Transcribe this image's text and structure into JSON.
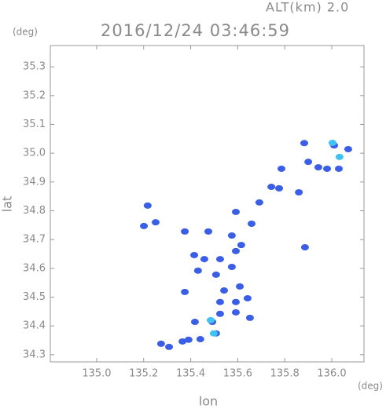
{
  "chart_data": {
    "type": "scatter",
    "title": "2016/12/24 03:46:59",
    "header": "ALT(km) 2.0",
    "y_unit": "(deg)",
    "x_unit": "(deg)",
    "xlabel": "lon",
    "ylabel": "lat",
    "xlim": [
      134.803,
      136.137
    ],
    "ylim": [
      34.275,
      35.374
    ],
    "xticks": [
      {
        "value": 135,
        "label": "135.0"
      },
      135.2,
      135.4,
      135.6,
      135.8,
      {
        "value": 136,
        "label": "136.0"
      }
    ],
    "yticks": [
      34.3,
      34.4,
      34.5,
      34.6,
      34.7,
      34.8,
      34.9,
      {
        "value": 35,
        "label": "35.0"
      },
      35.1,
      35.2,
      35.3
    ],
    "series": [
      {
        "color": "#3a5fe6",
        "x": [
          135.883,
          135.943,
          135.9,
          135.98,
          136.01,
          136.07,
          136.03,
          135.786,
          135.86,
          135.776,
          135.743,
          135.692,
          135.592,
          135.659,
          135.575,
          135.217,
          135.251,
          135.201,
          135.375,
          135.475,
          135.415,
          135.458,
          135.525,
          135.592,
          135.615,
          135.575,
          135.431,
          135.508,
          135.375,
          135.542,
          135.609,
          135.525,
          135.592,
          135.642,
          135.525,
          135.592,
          135.652,
          135.492,
          135.418,
          135.508,
          135.441,
          135.391,
          135.365,
          135.274,
          135.308,
          135.886
        ],
        "y": [
          35.035,
          34.951,
          34.97,
          34.946,
          35.027,
          35.014,
          34.946,
          34.946,
          34.864,
          34.878,
          34.883,
          34.829,
          34.796,
          34.755,
          34.714,
          34.818,
          34.76,
          34.747,
          34.728,
          34.728,
          34.646,
          34.632,
          34.632,
          34.66,
          34.681,
          34.605,
          34.592,
          34.578,
          34.518,
          34.523,
          34.537,
          34.483,
          34.483,
          34.496,
          34.442,
          34.447,
          34.428,
          34.414,
          34.414,
          34.374,
          34.354,
          34.352,
          34.346,
          34.338,
          34.327,
          34.673
        ]
      },
      {
        "color": "#3fc3f2",
        "x": [
          135.498,
          135.485,
          136.003,
          136.033
        ],
        "y": [
          34.374,
          34.42,
          35.036,
          34.987
        ]
      }
    ]
  }
}
